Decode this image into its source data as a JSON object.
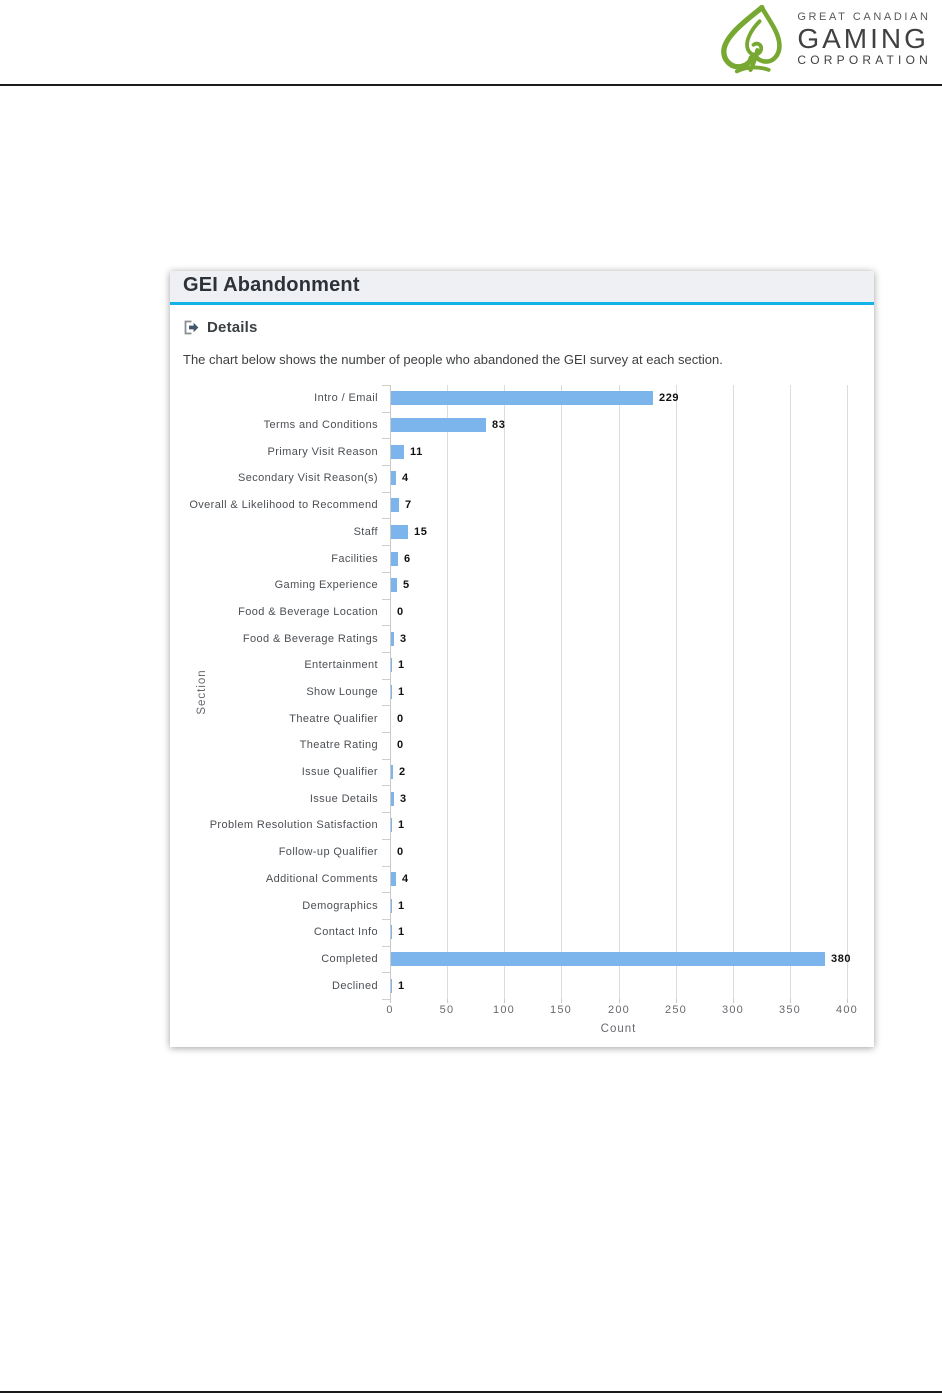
{
  "logo": {
    "line1": "GREAT CANADIAN",
    "line2": "GAMING",
    "line3": "CORPORATION",
    "spade_color": "#76a832",
    "text_color": "#414042"
  },
  "card": {
    "title": "GEI Abandonment",
    "accent_color": "#13b2e7",
    "details_label": "Details",
    "description": "The chart below shows the number of people who abandoned the GEI survey at each section."
  },
  "chart_data": {
    "type": "bar",
    "orientation": "horizontal",
    "title": "",
    "xlabel": "Count",
    "ylabel": "Section",
    "xlim": [
      0,
      400
    ],
    "xticks": [
      0,
      50,
      100,
      150,
      200,
      250,
      300,
      350,
      400
    ],
    "grid": true,
    "bar_color": "#7cb5ec",
    "categories": [
      "Intro / Email",
      "Terms and Conditions",
      "Primary Visit Reason",
      "Secondary Visit Reason(s)",
      "Overall & Likelihood to Recommend",
      "Staff",
      "Facilities",
      "Gaming Experience",
      "Food & Beverage Location",
      "Food & Beverage Ratings",
      "Entertainment",
      "Show Lounge",
      "Theatre Qualifier",
      "Theatre Rating",
      "Issue Qualifier",
      "Issue Details",
      "Problem Resolution Satisfaction",
      "Follow-up Qualifier",
      "Additional Comments",
      "Demographics",
      "Contact Info",
      "Completed",
      "Declined"
    ],
    "values": [
      229,
      83,
      11,
      4,
      7,
      15,
      6,
      5,
      0,
      3,
      1,
      1,
      0,
      0,
      2,
      3,
      1,
      0,
      4,
      1,
      1,
      380,
      1
    ]
  }
}
